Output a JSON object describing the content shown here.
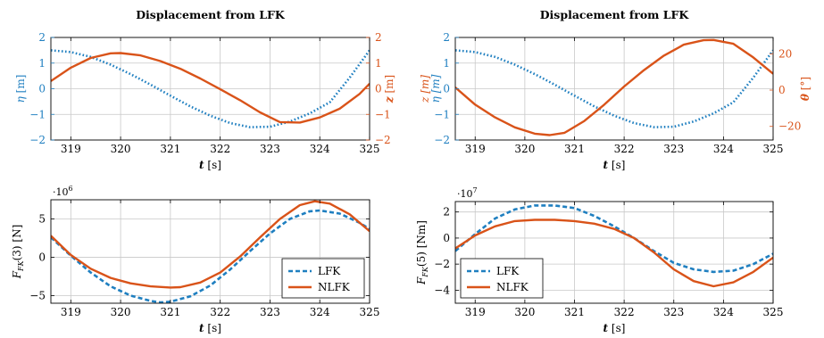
{
  "colors": {
    "blue": "#1f7fc0",
    "orange": "#d95319",
    "grid": "#c8c8c8",
    "axis": "#000000"
  },
  "chart_data": [
    {
      "type": "line",
      "title": "Displacement from LFK",
      "xlabel_sym": "t",
      "xlabel_unit": " [s]",
      "xlim": [
        318.6,
        325
      ],
      "xticks": [
        319,
        320,
        321,
        322,
        323,
        324,
        325
      ],
      "y_left": {
        "sym": "η",
        "unit": " [m]",
        "ylim": [
          -2,
          2
        ],
        "ticks": [
          -2,
          -1,
          0,
          1,
          2
        ],
        "color": "#1f7fc0"
      },
      "y_right": {
        "sym": "z",
        "unit": " [m]",
        "ylim": [
          -2,
          2
        ],
        "ticks": [
          -2,
          -1,
          0,
          1,
          2
        ],
        "color": "#d95319"
      },
      "grid": true,
      "series": [
        {
          "axis": "left",
          "style": "dotted",
          "color": "#1f7fc0",
          "x": [
            318.6,
            319.0,
            319.4,
            319.8,
            320.2,
            320.6,
            321.0,
            321.4,
            321.8,
            322.2,
            322.6,
            323.0,
            323.4,
            323.8,
            324.2,
            324.6,
            325.0
          ],
          "y": [
            1.5,
            1.43,
            1.24,
            0.94,
            0.57,
            0.16,
            -0.27,
            -0.69,
            -1.05,
            -1.34,
            -1.5,
            -1.48,
            -1.28,
            -0.96,
            -0.53,
            0.43,
            1.5
          ]
        },
        {
          "axis": "right",
          "style": "solid",
          "color": "#d95319",
          "x": [
            318.6,
            319.0,
            319.4,
            319.8,
            320.0,
            320.4,
            320.8,
            321.2,
            321.6,
            322.0,
            322.4,
            322.8,
            323.2,
            323.6,
            324.0,
            324.4,
            324.8,
            325.0
          ],
          "y": [
            0.3,
            0.82,
            1.2,
            1.38,
            1.39,
            1.3,
            1.08,
            0.78,
            0.4,
            -0.02,
            -0.45,
            -0.92,
            -1.3,
            -1.32,
            -1.12,
            -0.78,
            -0.2,
            0.2
          ]
        }
      ]
    },
    {
      "type": "line",
      "title": "Displacement from LFK",
      "xlabel_sym": "t",
      "xlabel_unit": " [s]",
      "xlim": [
        318.6,
        325
      ],
      "xticks": [
        319,
        320,
        321,
        322,
        323,
        324,
        325
      ],
      "y_left": {
        "sym": "z [m]",
        "sym2": "η [m]",
        "ylim": [
          -2,
          2
        ],
        "ticks": [
          -2,
          -1,
          0,
          1,
          2
        ],
        "color": "#1f7fc0"
      },
      "y_right": {
        "sym": "θ",
        "unit": " [°]",
        "ylim": [
          -27.5,
          29
        ],
        "ticks": [
          -20,
          0,
          20
        ],
        "color": "#d95319"
      },
      "grid": true,
      "series": [
        {
          "axis": "left",
          "style": "dotted",
          "color": "#1f7fc0",
          "x": [
            318.6,
            319.0,
            319.4,
            319.8,
            320.2,
            320.6,
            321.0,
            321.4,
            321.8,
            322.2,
            322.6,
            323.0,
            323.4,
            323.8,
            324.2,
            324.6,
            325.0
          ],
          "y": [
            1.5,
            1.43,
            1.24,
            0.94,
            0.57,
            0.16,
            -0.27,
            -0.69,
            -1.05,
            -1.34,
            -1.5,
            -1.48,
            -1.28,
            -0.96,
            -0.53,
            0.43,
            1.5
          ]
        },
        {
          "axis": "right",
          "style": "solid",
          "color": "#d95319",
          "x": [
            318.6,
            319.0,
            319.4,
            319.8,
            320.2,
            320.5,
            320.8,
            321.2,
            321.6,
            322.0,
            322.4,
            322.8,
            323.2,
            323.6,
            323.8,
            324.2,
            324.6,
            325.0
          ],
          "y": [
            1.5,
            -8.0,
            -15.0,
            -20.5,
            -24.0,
            -24.8,
            -23.5,
            -17.0,
            -8.0,
            2.0,
            11.0,
            19.0,
            25.0,
            27.5,
            27.6,
            25.5,
            18.0,
            9.0
          ]
        }
      ]
    },
    {
      "type": "line",
      "ylabel": "F_FK(3) [N]",
      "ylabel_main": "F",
      "ylabel_sub": "FK",
      "ylabel_rest": "(3) [N]",
      "xlabel_sym": "t",
      "xlabel_unit": " [s]",
      "multiplier": "·10",
      "multiplier_exp": "6",
      "xlim": [
        318.6,
        325
      ],
      "xticks": [
        319,
        320,
        321,
        322,
        323,
        324,
        325
      ],
      "ylim": [
        -6,
        7.5
      ],
      "yticks": [
        -5,
        0,
        5
      ],
      "grid": true,
      "legend": "bottom-right",
      "series": [
        {
          "name": "LFK",
          "style": "dashed",
          "color": "#1f7fc0",
          "x": [
            318.6,
            319.0,
            319.4,
            319.8,
            320.2,
            320.6,
            320.8,
            321.0,
            321.4,
            321.8,
            322.2,
            322.6,
            323.0,
            323.4,
            323.8,
            324.0,
            324.4,
            324.8,
            325.0
          ],
          "y": [
            2.6,
            0.2,
            -2.0,
            -3.8,
            -5.0,
            -5.7,
            -5.9,
            -5.8,
            -5.1,
            -3.7,
            -1.6,
            0.8,
            3.1,
            5.0,
            6.0,
            6.1,
            5.7,
            4.5,
            3.7
          ]
        },
        {
          "name": "NLFK",
          "style": "solid",
          "color": "#d95319",
          "x": [
            318.6,
            319.0,
            319.4,
            319.8,
            320.2,
            320.6,
            321.0,
            321.2,
            321.6,
            322.0,
            322.4,
            322.8,
            323.2,
            323.6,
            323.9,
            324.2,
            324.6,
            325.0
          ],
          "y": [
            2.8,
            0.3,
            -1.5,
            -2.7,
            -3.4,
            -3.8,
            -3.95,
            -3.9,
            -3.3,
            -2.0,
            0.1,
            2.6,
            5.0,
            6.8,
            7.3,
            7.0,
            5.6,
            3.4
          ]
        }
      ]
    },
    {
      "type": "line",
      "ylabel": "F_FK(5) [Nm]",
      "ylabel_main": "F",
      "ylabel_sub": "FK",
      "ylabel_rest": "(5) [Nm]",
      "xlabel_sym": "t",
      "xlabel_unit": " [s]",
      "multiplier": "·10",
      "multiplier_exp": "7",
      "xlim": [
        318.6,
        325
      ],
      "xticks": [
        319,
        320,
        321,
        322,
        323,
        324,
        325
      ],
      "ylim": [
        -5,
        2.8
      ],
      "yticks": [
        -4,
        -2,
        0,
        2
      ],
      "grid": true,
      "legend": "bottom-left",
      "series": [
        {
          "name": "LFK",
          "style": "dashed",
          "color": "#1f7fc0",
          "x": [
            318.6,
            319.0,
            319.4,
            319.8,
            320.2,
            320.6,
            321.0,
            321.4,
            321.8,
            322.2,
            322.6,
            323.0,
            323.4,
            323.8,
            324.2,
            324.6,
            325.0
          ],
          "y": [
            -1.0,
            0.3,
            1.5,
            2.2,
            2.5,
            2.5,
            2.3,
            1.7,
            0.9,
            0.0,
            -1.0,
            -1.9,
            -2.4,
            -2.6,
            -2.5,
            -2.0,
            -1.2
          ]
        },
        {
          "name": "NLFK",
          "style": "solid",
          "color": "#d95319",
          "x": [
            318.6,
            319.0,
            319.4,
            319.8,
            320.2,
            320.6,
            321.0,
            321.4,
            321.8,
            322.2,
            322.6,
            323.0,
            323.4,
            323.8,
            324.2,
            324.6,
            325.0
          ],
          "y": [
            -0.8,
            0.2,
            0.9,
            1.3,
            1.4,
            1.4,
            1.3,
            1.1,
            0.7,
            0.0,
            -1.1,
            -2.4,
            -3.3,
            -3.7,
            -3.4,
            -2.6,
            -1.5
          ]
        }
      ]
    }
  ]
}
